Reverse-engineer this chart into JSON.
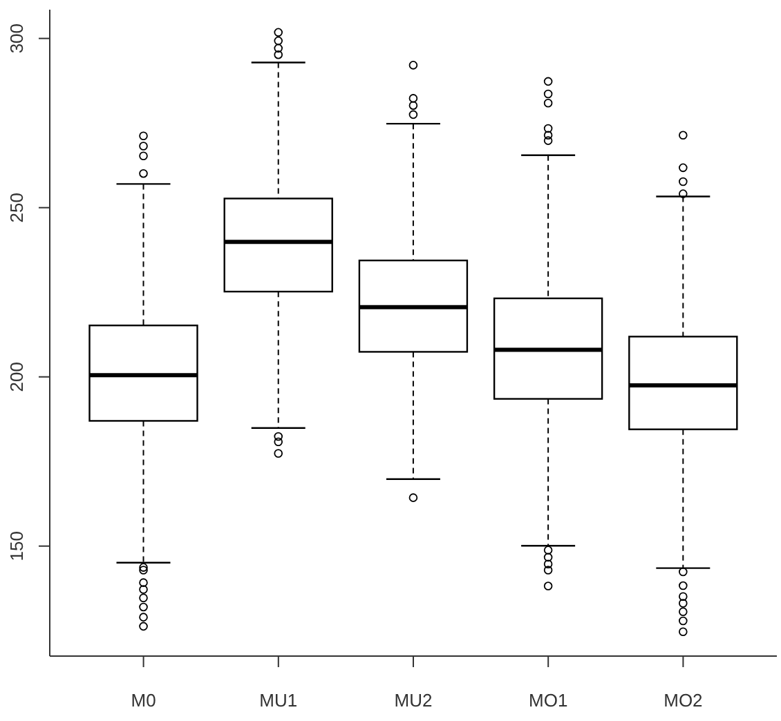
{
  "chart_data": {
    "type": "box",
    "categories": [
      "M0",
      "MU1",
      "MU2",
      "MO1",
      "MO2"
    ],
    "series": [
      {
        "color": "#000000",
        "boxes": [
          {
            "low": 145.1,
            "q1": 187,
            "median": 200.5,
            "q3": 215.2,
            "high": 257,
            "outliers": [
              260.1,
              265.3,
              268.2,
              271.2,
              143.7,
              142.9,
              139.2,
              137.2,
              134.7,
              132,
              129,
              126.3
            ]
          },
          {
            "low": 184.9,
            "q1": 225.2,
            "median": 239.9,
            "q3": 252.7,
            "high": 292.9,
            "outliers": [
              295.2,
              297.1,
              299.3,
              301.8,
              182.4,
              180.8,
              177.4
            ]
          },
          {
            "low": 169.8,
            "q1": 207.4,
            "median": 220.6,
            "q3": 234.4,
            "high": 274.8,
            "outliers": [
              277.5,
              280.2,
              282.3,
              292.1,
              164.3
            ]
          },
          {
            "low": 150.1,
            "q1": 193.5,
            "median": 208,
            "q3": 223.2,
            "high": 265.5,
            "outliers": [
              269.8,
              271.4,
              273.4,
              280.9,
              283.6,
              287.3,
              148.8,
              146.7,
              144.7,
              142.9,
              138.2
            ]
          },
          {
            "low": 143.5,
            "q1": 184.5,
            "median": 197.5,
            "q3": 211.9,
            "high": 253.3,
            "outliers": [
              254.1,
              257.7,
              261.8,
              271.4,
              142.4,
              138.3,
              135.1,
              133.1,
              130.6,
              127.9,
              124.7
            ]
          }
        ]
      }
    ],
    "ylim": [
      117.5,
      308.5
    ],
    "yticks": [
      150,
      200,
      250,
      300
    ]
  }
}
